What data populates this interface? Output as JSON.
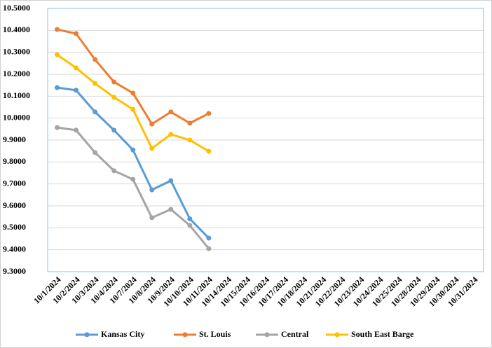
{
  "chart_data": {
    "type": "line",
    "categories": [
      "10/1/2024",
      "10/2/2024",
      "10/3/2024",
      "10/4/2024",
      "10/7/2024",
      "10/8/2024",
      "10/9/2024",
      "10/10/2024",
      "10/11/2024",
      "10/14/2024",
      "10/15/2024",
      "10/16/2024",
      "10/17/2024",
      "10/18/2024",
      "10/21/2024",
      "10/22/2024",
      "10/23/2024",
      "10/24/2024",
      "10/25/2024",
      "10/28/2024",
      "10/29/2024",
      "10/30/2024",
      "10/31/2024"
    ],
    "series": [
      {
        "name": "Kansas City",
        "color": "#5b9bd5",
        "values": [
          10.139,
          10.127,
          10.028,
          9.945,
          9.855,
          9.673,
          9.715,
          9.541,
          9.453,
          null,
          null,
          null,
          null,
          null,
          null,
          null,
          null,
          null,
          null,
          null,
          null,
          null,
          null
        ]
      },
      {
        "name": "St. Louis",
        "color": "#ed7d31",
        "values": [
          10.404,
          10.385,
          10.267,
          10.165,
          10.114,
          9.973,
          10.028,
          9.977,
          10.021,
          null,
          null,
          null,
          null,
          null,
          null,
          null,
          null,
          null,
          null,
          null,
          null,
          null,
          null
        ]
      },
      {
        "name": "Central",
        "color": "#a5a5a5",
        "values": [
          9.957,
          9.945,
          9.843,
          9.76,
          9.721,
          9.546,
          9.584,
          9.511,
          9.405,
          null,
          null,
          null,
          null,
          null,
          null,
          null,
          null,
          null,
          null,
          null,
          null,
          null,
          null
        ]
      },
      {
        "name": "South East Barge",
        "color": "#ffc000",
        "values": [
          10.289,
          10.229,
          10.158,
          10.095,
          10.04,
          9.862,
          9.926,
          9.9,
          9.849,
          null,
          null,
          null,
          null,
          null,
          null,
          null,
          null,
          null,
          null,
          null,
          null,
          null,
          null
        ]
      }
    ],
    "ylim": [
      9.3,
      10.5
    ],
    "yticks": [
      {
        "value": 9.3,
        "label": "9.3000"
      },
      {
        "value": 9.4,
        "label": "9.4000"
      },
      {
        "value": 9.5,
        "label": "9.5000"
      },
      {
        "value": 9.6,
        "label": "9.6000"
      },
      {
        "value": 9.7,
        "label": "9.7000"
      },
      {
        "value": 9.8,
        "label": "9.8000"
      },
      {
        "value": 9.9,
        "label": "9.9000"
      },
      {
        "value": 10.0,
        "label": "10.0000"
      },
      {
        "value": 10.1,
        "label": "10.1000"
      },
      {
        "value": 10.2,
        "label": "10.2000"
      },
      {
        "value": 10.3,
        "label": "10.3000"
      },
      {
        "value": 10.4,
        "label": "10.4000"
      },
      {
        "value": 10.5,
        "label": "10.5000"
      }
    ],
    "grid": true,
    "legend": "bottom"
  }
}
